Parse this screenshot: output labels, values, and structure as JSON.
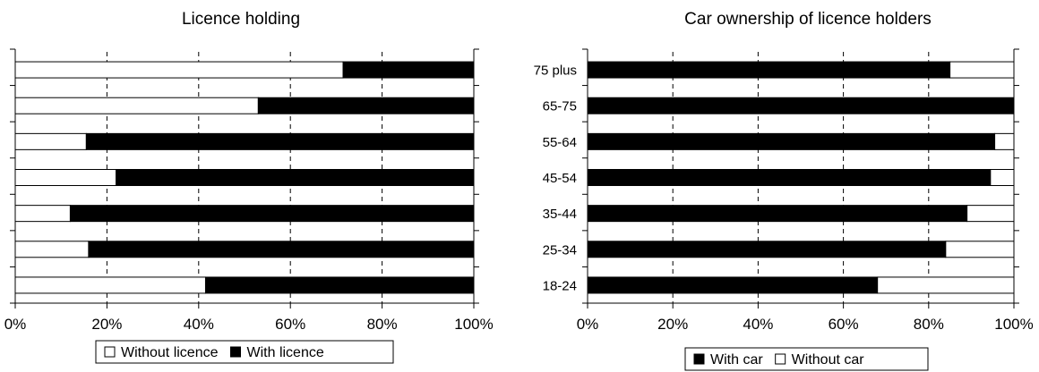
{
  "chart_data": [
    {
      "type": "bar",
      "orientation": "horizontal",
      "stacked": "percent",
      "title": "Licence holding",
      "categories": [
        "75 plus",
        "65-75",
        "55-64",
        "45-54",
        "35-44",
        "25-34",
        "18-24"
      ],
      "show_category_labels": false,
      "series": [
        {
          "name": "Without licence",
          "values": [
            71.5,
            53,
            15.5,
            22,
            12,
            16,
            41.5
          ],
          "color": "#ffffff"
        },
        {
          "name": "With licence",
          "values": [
            28.5,
            47,
            84.5,
            78,
            88,
            84,
            58.5
          ],
          "color": "#000000"
        }
      ],
      "xlim": [
        0,
        100
      ],
      "xticks": [
        "0%",
        "20%",
        "40%",
        "60%",
        "80%",
        "100%"
      ],
      "grid": "vertical dashed",
      "legend": "bottom"
    },
    {
      "type": "bar",
      "orientation": "horizontal",
      "stacked": "percent",
      "title": "Car ownership of licence holders",
      "categories": [
        "75 plus",
        "65-75",
        "55-64",
        "45-54",
        "35-44",
        "25-34",
        "18-24"
      ],
      "show_category_labels": true,
      "series": [
        {
          "name": "With car",
          "values": [
            85,
            100,
            95.5,
            94.5,
            89,
            84,
            68
          ],
          "color": "#000000"
        },
        {
          "name": "Without car",
          "values": [
            15,
            0,
            4.5,
            5.5,
            11,
            16,
            32
          ],
          "color": "#ffffff"
        }
      ],
      "xlim": [
        0,
        100
      ],
      "xticks": [
        "0%",
        "20%",
        "40%",
        "60%",
        "80%",
        "100%"
      ],
      "grid": "vertical dashed",
      "legend": "bottom"
    }
  ]
}
